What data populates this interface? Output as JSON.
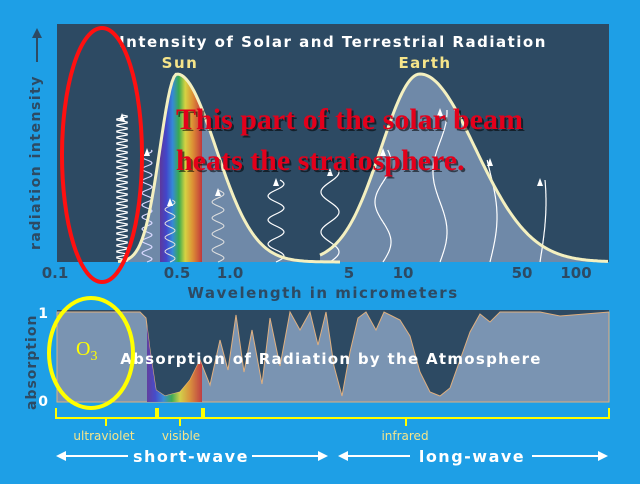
{
  "top_panel": {
    "title": "Intensity of Solar and Terrestrial Radiation",
    "sun_label": "Sun",
    "earth_label": "Earth",
    "y_axis_label": "radiation intensity",
    "x_axis_label": "Wavelength in micrometers",
    "x_ticks": [
      "0.1",
      "0.5",
      "1.0",
      "5",
      "10",
      "50",
      "100"
    ],
    "overlay_line1": "This part of the solar beam",
    "overlay_line2": "heats the stratosphere."
  },
  "bottom_panel": {
    "title": "Absorption of Radiation by the Atmosphere",
    "y_axis_label": "absorption",
    "y_tick_top": "1",
    "y_tick_bottom": "0",
    "o3_main": "O",
    "o3_sub": "3"
  },
  "bands": {
    "ultraviolet": "ultraviolet",
    "visible": "visible",
    "infrared": "infrared",
    "short_wave": "short-wave",
    "long_wave": "long-wave"
  },
  "colors": {
    "background": "#1e9fe6",
    "panel": "#2d4a63",
    "curve": "#f4f0c0",
    "label_yellow": "#f6e58a",
    "overlay_text": "#e3001b",
    "red_ellipse": "#ff1010",
    "yellow_circle": "#ffff00"
  }
}
